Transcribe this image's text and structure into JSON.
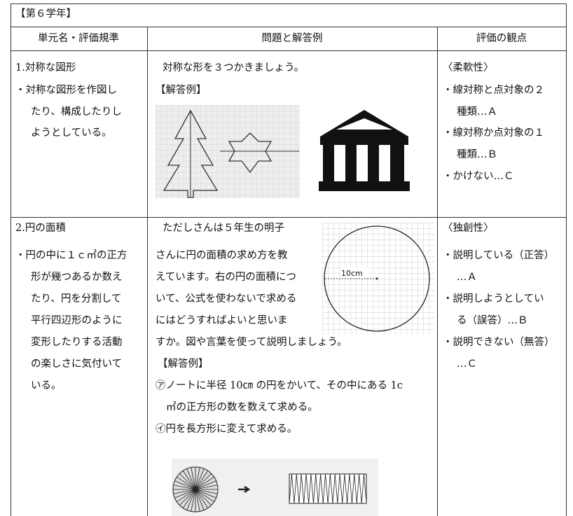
{
  "header": {
    "title": "【第６学年】"
  },
  "table": {
    "columns": [
      "単元名・評価規準",
      "問題と解答例",
      "評価の観点"
    ],
    "rows": [
      {
        "cells": [
          [
            "1.対称な図形",
            "・対称な図形を作図し",
            "たり、構成したりし",
            "ようとしている。"
          ],
          [
            "対称な形を３つかきましょう。",
            "【解答例】"
          ],
          [
            "〈柔軟性〉",
            "・線対称と点対象の２",
            "種類…Ａ",
            "・線対称か点対象の１",
            "種類…Ｂ",
            "・かけない…Ｃ"
          ]
        ]
      },
      {
        "cells": [
          [
            "2.円の面積",
            "・円の中に１ｃ㎡の正方",
            "形が幾つあるか数え",
            "たり、円を分割して",
            "平行四辺形のように",
            "変形したりする活動",
            "の楽しさに気付いて",
            "いる。"
          ],
          [
            "ただしさんは５年生の明子",
            "さんに円の面積の求め方を教",
            "えています。右の円の面積につ",
            "いて、公式を使わないで求める",
            "にはどうすればよいと思いま",
            "すか。図や言葉を使って説明しましょう。",
            "【解答例】",
            "㋐ノートに半径 10㎝ の円をかいて、その中にある 1c",
            "㎡の正方形の数を数えて求める。",
            "㋑円を長方形に変えて求める。"
          ],
          [
            "〈独創性〉",
            "・説明している（正答）",
            "…Ａ",
            "・説明しようとしてい",
            "る（誤答）…Ｂ",
            "・説明できない（無答）",
            "…Ｃ"
          ]
        ],
        "figure_label": "10cm"
      }
    ]
  }
}
